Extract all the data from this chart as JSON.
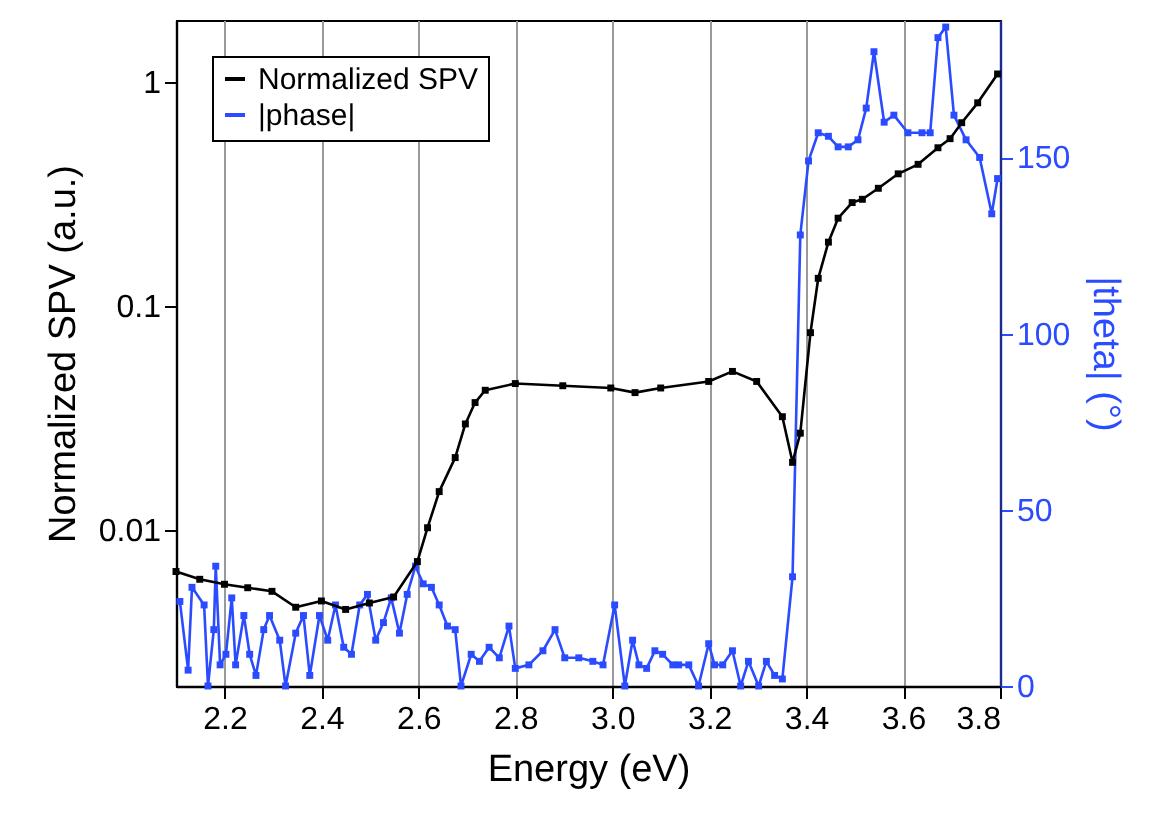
{
  "chart_data": {
    "type": "line",
    "xlabel": "Energy (eV)",
    "ylabel": "Normalized SPV (a.u.)",
    "y2label": "|theta| (°)",
    "xlim": [
      2.1,
      3.8
    ],
    "xticks": [
      2.2,
      2.4,
      2.6,
      2.8,
      {
        "value": 3,
        "label": "3.0"
      },
      3.2,
      3.4,
      3.6,
      3.8
    ],
    "ylim": [
      0.002,
      1.9
    ],
    "yticks": [
      0.01,
      0.1,
      1
    ],
    "log": "y",
    "y2lim": [
      0,
      189
    ],
    "y2ticks": [
      0,
      50,
      100,
      150
    ],
    "grid": "x",
    "legend": "top left",
    "marker": "square",
    "line_style": "solid",
    "series": [
      {
        "name": "Normalized SPV",
        "color": "#000000",
        "x": [
          2.1,
          2.149,
          2.2,
          2.248,
          2.298,
          2.347,
          2.4,
          2.45,
          2.499,
          2.549,
          2.598,
          2.619,
          2.643,
          2.676,
          2.697,
          2.717,
          2.738,
          2.8,
          2.898,
          2.997,
          3.047,
          3.1,
          3.199,
          3.248,
          3.298,
          3.351,
          3.372,
          3.388,
          3.409,
          3.425,
          3.446,
          3.466,
          3.495,
          3.516,
          3.549,
          3.59,
          3.631,
          3.672,
          3.697,
          3.721,
          3.754,
          3.795
        ],
        "values": [
          0.0065,
          0.006,
          0.0057,
          0.0055,
          0.0053,
          0.0045,
          0.0048,
          0.0044,
          0.0047,
          0.005,
          0.0072,
          0.0102,
          0.0148,
          0.021,
          0.0297,
          0.037,
          0.042,
          0.045,
          0.044,
          0.043,
          0.041,
          0.043,
          0.046,
          0.051,
          0.046,
          0.032,
          0.02,
          0.027,
          0.076,
          0.133,
          0.193,
          0.247,
          0.29,
          0.3,
          0.336,
          0.39,
          0.43,
          0.51,
          0.56,
          0.66,
          0.81,
          1.09
        ]
      },
      {
        "name": "|phase|",
        "color": "#2a4bff",
        "axis": "y2",
        "x": [
          2.108,
          2.125,
          2.133,
          2.158,
          2.166,
          2.178,
          2.182,
          2.191,
          2.203,
          2.215,
          2.223,
          2.24,
          2.252,
          2.265,
          2.281,
          2.293,
          2.314,
          2.326,
          2.347,
          2.363,
          2.376,
          2.396,
          2.413,
          2.429,
          2.446,
          2.462,
          2.479,
          2.495,
          2.512,
          2.528,
          2.544,
          2.561,
          2.577,
          2.594,
          2.61,
          2.627,
          2.643,
          2.66,
          2.676,
          2.688,
          2.709,
          2.726,
          2.746,
          2.767,
          2.787,
          2.8,
          2.828,
          2.857,
          2.882,
          2.902,
          2.931,
          2.96,
          2.981,
          3.005,
          3.026,
          3.042,
          3.055,
          3.071,
          3.088,
          3.104,
          3.125,
          3.137,
          3.158,
          3.178,
          3.199,
          3.211,
          3.228,
          3.248,
          3.265,
          3.281,
          3.302,
          3.318,
          3.335,
          3.351,
          3.372,
          3.388,
          3.405,
          3.425,
          3.446,
          3.466,
          3.487,
          3.507,
          3.524,
          3.54,
          3.561,
          3.581,
          3.61,
          3.639,
          3.656,
          3.672,
          3.688,
          3.705,
          3.73,
          3.758,
          3.783,
          3.795
        ],
        "values": [
          24,
          4.5,
          28,
          23,
          0,
          16,
          34,
          6,
          9,
          25,
          6,
          20,
          9,
          3,
          16,
          20,
          13,
          0,
          15,
          20,
          3,
          20,
          13,
          23,
          11,
          9,
          23,
          26,
          13,
          18,
          25,
          15,
          26,
          34,
          29,
          28,
          23,
          17,
          16,
          0,
          9,
          7,
          11,
          8,
          17,
          5,
          6,
          10,
          16,
          8,
          8,
          7,
          6,
          23,
          0,
          13,
          6,
          5,
          10,
          9,
          6,
          6,
          6,
          0,
          12,
          6,
          6,
          10,
          0,
          7,
          0,
          7,
          3,
          2,
          31,
          128,
          149,
          157,
          156,
          153,
          153,
          155,
          164,
          180,
          160,
          162,
          157,
          157,
          157,
          184,
          187,
          162,
          155,
          150,
          134,
          144
        ]
      }
    ]
  }
}
